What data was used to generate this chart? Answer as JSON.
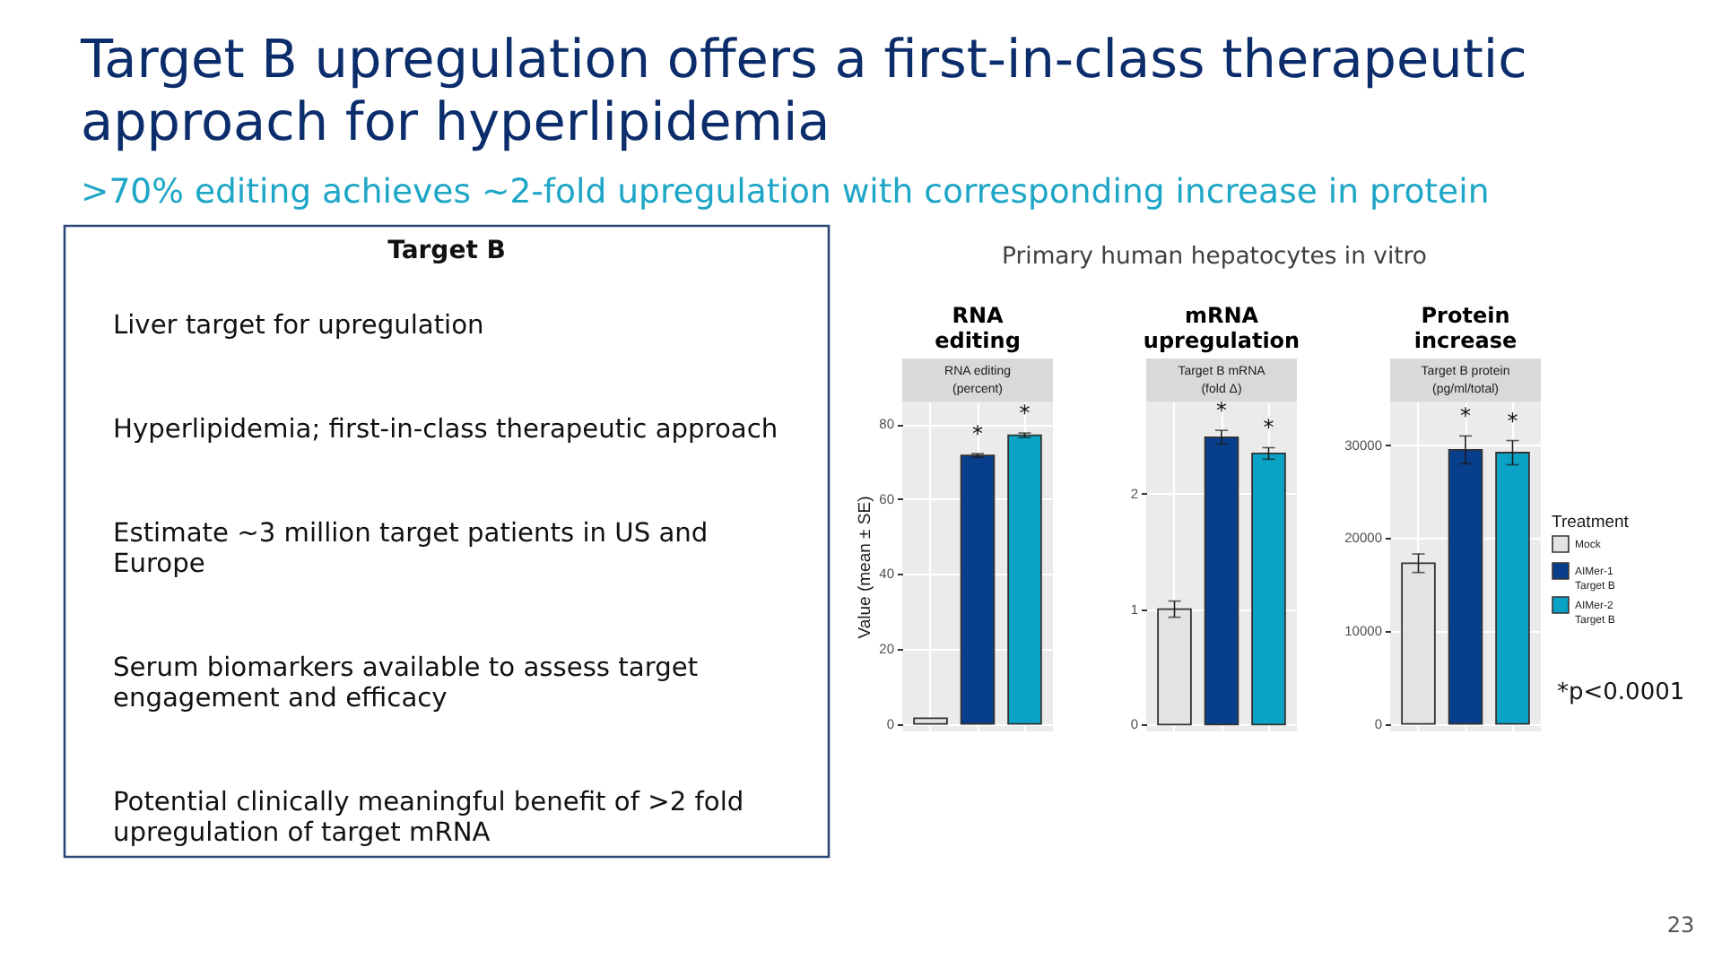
{
  "chart_data": [
    {
      "type": "other",
      "title": "Target B upregulation offers a first-in-class therapeutic approach for hyperlipidemia",
      "subtitle": ">70% editing achieves ~2-fold upregulation with corresponding increase in protein",
      "annotations": [
        "23"
      ]
    },
    {
      "type": "other",
      "title": "Target B",
      "annotations": [
        "Liver target for upregulation",
        "Hyperlipidemia; first-in-class therapeutic approach",
        "Estimate ~3 million target patients in US and Europe",
        "Serum biomarkers available to assess target engagement and efficacy",
        "Potential clinically meaningful benefit of >2 fold upregulation of target mRNA"
      ]
    },
    {
      "type": "bar",
      "title": "RNA\nediting",
      "subtitle": "RNA editing\n(percent)",
      "ylabel": "Value (mean ± SE)",
      "annotations": [
        "Primary human hepatocytes in vitro"
      ],
      "categories": [
        null,
        null,
        null
      ],
      "series": [
        {
          "color": "#e3e3e3",
          "values": [
            1.5,
            null,
            null
          ]
        },
        {
          "color": "#083f8d",
          "values": [
            null,
            71.6,
            null
          ],
          "errors": [
            null,
            0.5,
            null
          ],
          "value_labels": [
            null,
            "*",
            null
          ]
        },
        {
          "color": "#0aa2c5",
          "values": [
            null,
            null,
            77.0
          ],
          "errors": [
            null,
            null,
            0.6
          ],
          "value_labels": [
            null,
            null,
            "*"
          ]
        }
      ],
      "ylim": [
        -2,
        86
      ],
      "yticks": [
        0,
        20,
        40,
        60,
        80
      ],
      "grid": true,
      "tick_labels": "y",
      "legend": false
    },
    {
      "type": "bar",
      "title": "mRNA\nupregulation",
      "subtitle": "Target B mRNA\n(fold Δ)",
      "categories": [
        null,
        null,
        null
      ],
      "series": [
        {
          "color": "#e3e3e3",
          "values": [
            1.0,
            null,
            null
          ],
          "errors": [
            0.07,
            null,
            null
          ]
        },
        {
          "color": "#083f8d",
          "values": [
            null,
            2.49,
            null
          ],
          "errors": [
            null,
            0.06,
            null
          ],
          "value_labels": [
            null,
            "*",
            null
          ]
        },
        {
          "color": "#0aa2c5",
          "values": [
            null,
            null,
            2.35
          ],
          "errors": [
            null,
            null,
            0.05
          ],
          "value_labels": [
            null,
            null,
            "*"
          ]
        }
      ],
      "ylim": [
        -0.06,
        2.8
      ],
      "yticks": [
        0,
        1,
        2
      ],
      "grid": true,
      "tick_labels": "y",
      "legend": false
    },
    {
      "type": "bar",
      "title": "Protein\nincrease",
      "subtitle": "Target B protein\n(pg/ml/total)",
      "legend_title": "Treatment",
      "annotations": [
        "*p<0.0001"
      ],
      "categories": [
        null,
        null,
        null
      ],
      "series": [
        {
          "name": "Mock",
          "color": "#e3e3e3",
          "values": [
            17300,
            null,
            null
          ],
          "errors": [
            1000,
            null,
            null
          ]
        },
        {
          "name": "AIMer-1 Target B",
          "color": "#083f8d",
          "values": [
            null,
            29500,
            null
          ],
          "errors": [
            null,
            1500,
            null
          ],
          "value_labels": [
            null,
            "*",
            null
          ]
        },
        {
          "name": "AIMer-2 Target B",
          "color": "#0aa2c5",
          "values": [
            null,
            null,
            29200
          ],
          "errors": [
            null,
            null,
            1300
          ],
          "value_labels": [
            null,
            null,
            "*"
          ]
        }
      ],
      "ylim": [
        -800,
        34700
      ],
      "yticks": [
        0,
        10000,
        20000,
        30000
      ],
      "grid": true,
      "tick_labels": "y",
      "legend": "right"
    }
  ]
}
